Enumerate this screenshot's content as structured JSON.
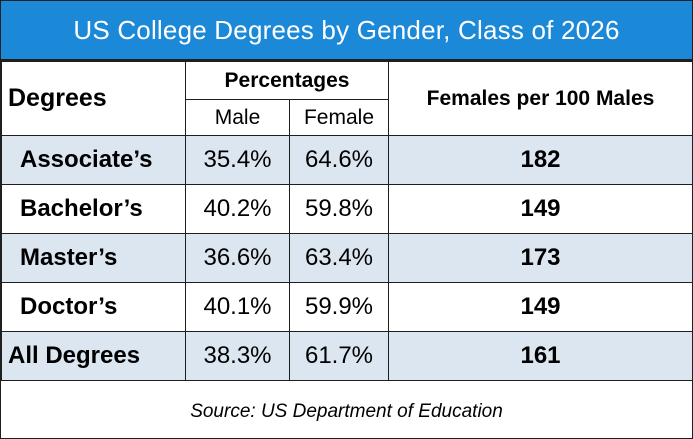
{
  "title": "US College Degrees by Gender, Class of 2026",
  "headers": {
    "degrees": "Degrees",
    "percentages": "Percentages",
    "male": "Male",
    "female": "Female",
    "ratio": "Females per 100 Males"
  },
  "source": "Source: US Department of Education",
  "colors": {
    "title_bar": "#1b88d8",
    "row_shade": "#dce6f1"
  },
  "chart_data": {
    "type": "table",
    "title": "US College Degrees by Gender, Class of 2026",
    "columns": [
      "Degrees",
      "Male",
      "Female",
      "Females per 100 Males"
    ],
    "column_group": "Percentages",
    "rows": [
      {
        "degree": "Associate’s",
        "male": "35.4%",
        "female": "64.6%",
        "ratio": "182"
      },
      {
        "degree": "Bachelor’s",
        "male": "40.2%",
        "female": "59.8%",
        "ratio": "149"
      },
      {
        "degree": "Master’s",
        "male": "36.6%",
        "female": "63.4%",
        "ratio": "173"
      },
      {
        "degree": "Doctor’s",
        "male": "40.1%",
        "female": "59.9%",
        "ratio": "149"
      },
      {
        "degree": "All Degrees",
        "male": "38.3%",
        "female": "61.7%",
        "ratio": "161"
      }
    ]
  }
}
